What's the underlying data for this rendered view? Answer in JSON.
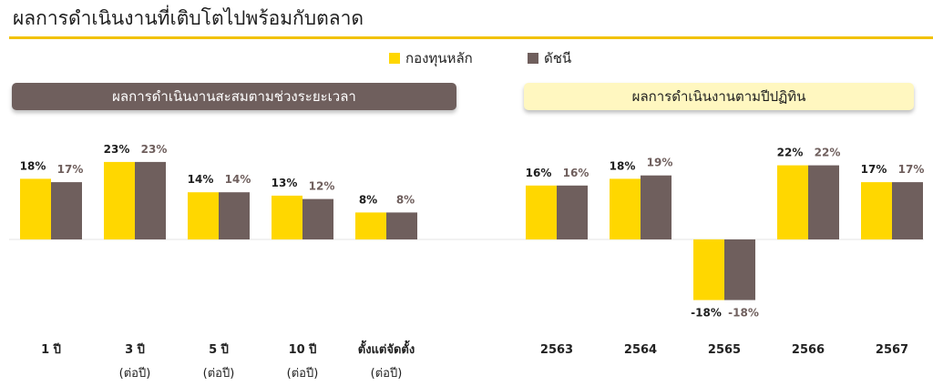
{
  "title": "ผลการดำเนินงานที่เติบโตไปพร้อมกับตลาด",
  "legend": {
    "fund": "กองทุนหลัก",
    "index": "ดัชนี"
  },
  "colors": {
    "fund": "#ffd700",
    "index": "#6f5f5d",
    "accent": "#f2c200"
  },
  "banners": {
    "left": "ผลการดำเนินงานสะสมตามช่วงระยะเวลา",
    "right": "ผลการดำเนินงานตามปีปฏิทิน"
  },
  "chart_data": [
    {
      "type": "bar",
      "title": "ผลการดำเนินงานสะสมตามช่วงระยะเวลา",
      "categories": [
        {
          "line1": "1 ปี",
          "line2": ""
        },
        {
          "line1": "3 ปี",
          "line2": "(ต่อปี)"
        },
        {
          "line1": "5 ปี",
          "line2": "(ต่อปี)"
        },
        {
          "line1": "10 ปี",
          "line2": "(ต่อปี)"
        },
        {
          "line1": "ตั้งแต่จัดตั้ง",
          "line2": "(ต่อปี)"
        }
      ],
      "series": [
        {
          "name": "กองทุนหลัก",
          "values": [
            18,
            23,
            14,
            13,
            8
          ],
          "labels": [
            "18%",
            "23%",
            "14%",
            "13%",
            "8%"
          ]
        },
        {
          "name": "ดัชนี",
          "values": [
            17,
            23,
            14,
            12,
            8
          ],
          "labels": [
            "17%",
            "23%",
            "14%",
            "12%",
            "8%"
          ]
        }
      ],
      "ylim": [
        -20,
        25
      ],
      "grid": false
    },
    {
      "type": "bar",
      "title": "ผลการดำเนินงานตามปีปฏิทิน",
      "categories": [
        {
          "line1": "2563",
          "line2": ""
        },
        {
          "line1": "2564",
          "line2": ""
        },
        {
          "line1": "2565",
          "line2": ""
        },
        {
          "line1": "2566",
          "line2": ""
        },
        {
          "line1": "2567",
          "line2": ""
        }
      ],
      "series": [
        {
          "name": "กองทุนหลัก",
          "values": [
            16,
            18,
            -18,
            22,
            17
          ],
          "labels": [
            "16%",
            "18%",
            "-18%",
            "22%",
            "17%"
          ]
        },
        {
          "name": "ดัชนี",
          "values": [
            16,
            19,
            -18,
            22,
            17
          ],
          "labels": [
            "16%",
            "19%",
            "-18%",
            "22%",
            "17%"
          ]
        }
      ],
      "ylim": [
        -20,
        25
      ],
      "grid": false
    }
  ]
}
